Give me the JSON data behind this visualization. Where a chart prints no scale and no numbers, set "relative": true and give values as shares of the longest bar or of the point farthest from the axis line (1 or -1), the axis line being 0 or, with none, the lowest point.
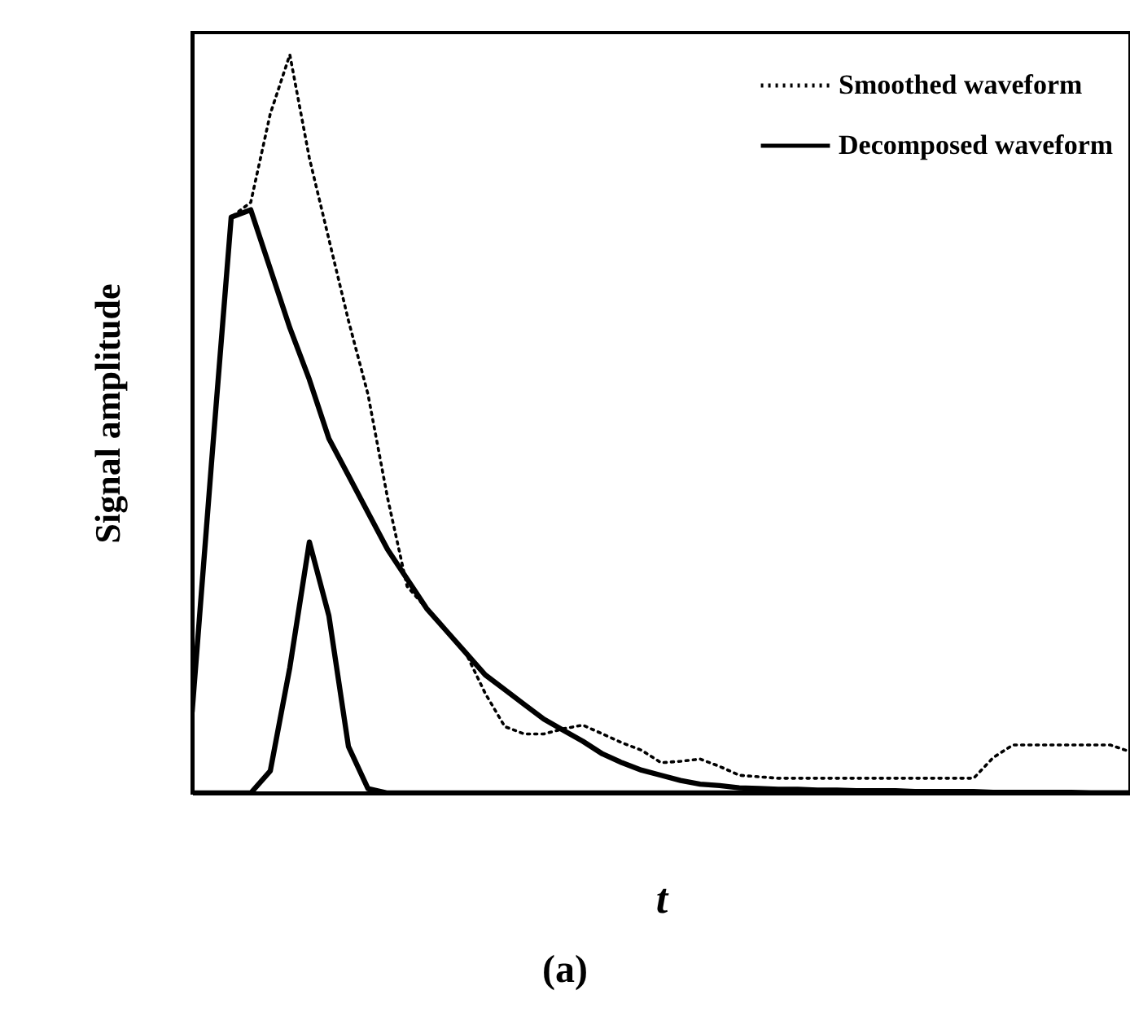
{
  "chart_data": {
    "type": "line",
    "relative": true,
    "xlabel": "t",
    "ylabel": "Signal amplitude",
    "annotations": [
      "(a)"
    ],
    "legend": "top right",
    "grid": false,
    "categories": [
      null,
      null,
      null,
      null,
      null,
      null,
      null,
      null,
      null,
      null,
      null,
      null,
      null,
      null,
      null,
      null,
      null,
      null,
      null,
      null,
      null,
      null,
      null,
      null,
      null,
      null,
      null,
      null,
      null,
      null,
      null,
      null,
      null,
      null,
      null,
      null,
      null,
      null,
      null,
      null,
      null,
      null,
      null,
      null,
      null,
      null,
      null,
      null,
      null
    ],
    "series": [
      {
        "name": "Smoothed waveform",
        "color": "#000000",
        "line_style": "dotted",
        "values": [
          0.11,
          0.45,
          0.78,
          0.8,
          0.92,
          1.0,
          0.86,
          0.75,
          0.64,
          0.54,
          0.4,
          0.28,
          0.25,
          0.22,
          0.19,
          0.135,
          0.09,
          0.08,
          0.08,
          0.087,
          0.092,
          0.08,
          0.068,
          0.058,
          0.041,
          0.043,
          0.046,
          0.036,
          0.024,
          0.022,
          0.02,
          0.02,
          0.02,
          0.02,
          0.02,
          0.02,
          0.02,
          0.02,
          0.02,
          0.02,
          0.02,
          0.048,
          0.065,
          0.065,
          0.065,
          0.065,
          0.065,
          0.065,
          0.056
        ]
      },
      {
        "name": "Decomposed waveform",
        "color": "#000000",
        "line_style": "solid",
        "values": [
          0.11,
          0.45,
          0.78,
          0.79,
          0.71,
          0.63,
          0.56,
          0.48,
          0.43,
          0.38,
          0.33,
          0.29,
          0.25,
          0.22,
          0.19,
          0.16,
          0.14,
          0.12,
          0.1,
          0.085,
          0.07,
          0.053,
          0.041,
          0.031,
          0.024,
          0.017,
          0.012,
          0.01,
          0.007,
          0.006,
          0.005,
          0.005,
          0.004,
          0.004,
          0.003,
          0.003,
          0.003,
          0.002,
          0.002,
          0.002,
          0.002,
          0.001,
          0.001,
          0.001,
          0.001,
          0.001,
          0,
          0,
          0
        ]
      },
      {
        "color": "#000000",
        "line_style": "solid",
        "values": [
          0,
          0,
          0,
          0,
          0.03,
          0.17,
          0.34,
          0.24,
          0.063,
          0.006,
          0,
          0,
          0,
          0,
          0,
          0,
          0,
          0,
          0,
          0,
          0,
          0,
          0,
          0,
          0,
          0,
          0,
          0,
          0,
          0,
          0,
          0,
          0,
          0,
          0,
          0,
          0,
          0,
          0,
          0,
          0,
          0,
          0,
          0,
          0,
          0,
          0,
          0,
          0
        ]
      }
    ]
  }
}
